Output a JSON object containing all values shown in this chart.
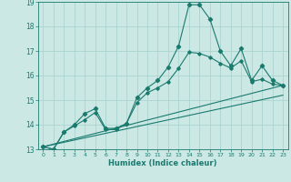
{
  "xlabel": "Humidex (Indice chaleur)",
  "xlim": [
    -0.5,
    23.5
  ],
  "ylim": [
    13,
    19
  ],
  "yticks": [
    13,
    14,
    15,
    16,
    17,
    18,
    19
  ],
  "xticks": [
    0,
    1,
    2,
    3,
    4,
    5,
    6,
    7,
    8,
    9,
    10,
    11,
    12,
    13,
    14,
    15,
    16,
    17,
    18,
    19,
    20,
    21,
    22,
    23
  ],
  "background_color": "#cce8e5",
  "grid_color": "#aad4d0",
  "line_color": "#1a7a6e",
  "series_main_x": [
    0,
    1,
    2,
    3,
    4,
    5,
    6,
    7,
    8,
    9,
    10,
    11,
    12,
    13,
    14,
    15,
    16,
    17,
    18,
    19,
    20,
    21,
    22,
    23
  ],
  "series_main_y": [
    13.1,
    13.0,
    13.7,
    14.0,
    14.45,
    14.65,
    13.85,
    13.85,
    14.05,
    15.1,
    15.5,
    15.8,
    16.35,
    17.2,
    18.88,
    18.88,
    18.3,
    17.0,
    16.4,
    17.1,
    15.8,
    16.4,
    15.8,
    15.6
  ],
  "series2_x": [
    0,
    1,
    2,
    3,
    4,
    5,
    6,
    7,
    8,
    9,
    10,
    11,
    12,
    13,
    14,
    15,
    16,
    17,
    18,
    19,
    20,
    21,
    22,
    23
  ],
  "series2_y": [
    13.1,
    13.0,
    13.7,
    13.95,
    14.2,
    14.5,
    13.8,
    13.8,
    14.05,
    14.9,
    15.3,
    15.5,
    15.75,
    16.3,
    16.95,
    16.9,
    16.75,
    16.5,
    16.3,
    16.6,
    15.75,
    15.85,
    15.65,
    15.6
  ],
  "series3_x": [
    0,
    23
  ],
  "series3_y": [
    13.1,
    15.2
  ],
  "series4_x": [
    0,
    23
  ],
  "series4_y": [
    13.1,
    15.6
  ]
}
